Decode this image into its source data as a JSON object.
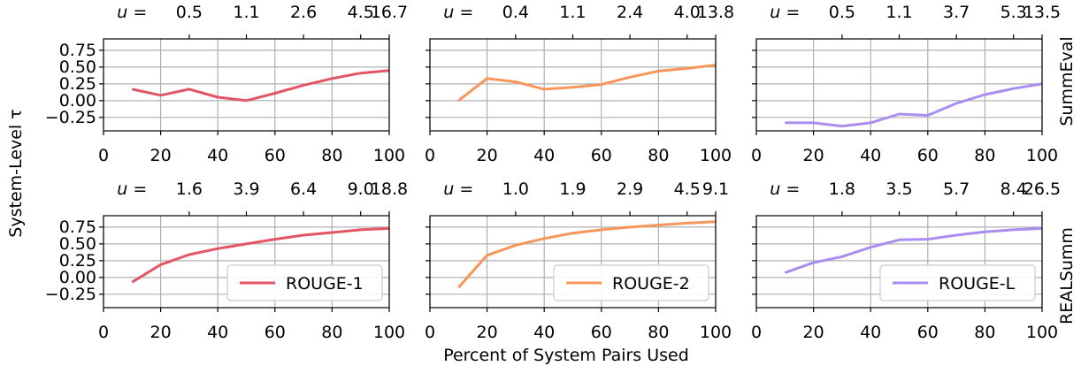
{
  "figure": {
    "ylabel": "System-Level τ",
    "xlabel": "Percent of System Pairs Used",
    "row_labels": [
      "SummEval",
      "REALSumm"
    ],
    "u_prefix": "u",
    "u_eq": " ="
  },
  "chart_data": [
    {
      "type": "line",
      "row": 0,
      "col": 0,
      "metric": "ROUGE-1",
      "color": "#e35464",
      "x": [
        10,
        20,
        30,
        40,
        50,
        60,
        70,
        80,
        90,
        100
      ],
      "y": [
        0.17,
        0.08,
        0.17,
        0.05,
        0.0,
        0.11,
        0.23,
        0.33,
        0.41,
        0.45
      ],
      "u_ticks": [
        "0.5",
        "1.1",
        "2.6",
        "4.5",
        "16.7"
      ],
      "xlim": [
        0,
        100
      ],
      "ylim": [
        -0.45,
        0.92
      ],
      "yticks": [
        "0.75",
        "0.50",
        "0.25",
        "0.00",
        "−0.25"
      ],
      "xticks": [
        "0",
        "20",
        "40",
        "60",
        "80",
        "100"
      ],
      "grid": true
    },
    {
      "type": "line",
      "row": 0,
      "col": 1,
      "metric": "ROUGE-2",
      "color": "#f7965a",
      "x": [
        10,
        20,
        30,
        40,
        50,
        60,
        70,
        80,
        90,
        100
      ],
      "y": [
        0.0,
        0.33,
        0.28,
        0.17,
        0.2,
        0.24,
        0.35,
        0.44,
        0.48,
        0.53
      ],
      "u_ticks": [
        "0.4",
        "1.1",
        "2.4",
        "4.0",
        "13.8"
      ],
      "xlim": [
        0,
        100
      ],
      "ylim": [
        -0.45,
        0.92
      ],
      "xticks": [
        "0",
        "20",
        "40",
        "60",
        "80",
        "100"
      ],
      "grid": true
    },
    {
      "type": "line",
      "row": 0,
      "col": 2,
      "metric": "ROUGE-L",
      "color": "#a98ef0",
      "x": [
        10,
        20,
        30,
        40,
        50,
        60,
        70,
        80,
        90,
        100
      ],
      "y": [
        -0.33,
        -0.33,
        -0.38,
        -0.33,
        -0.2,
        -0.22,
        -0.04,
        0.09,
        0.18,
        0.25
      ],
      "u_ticks": [
        "0.5",
        "1.1",
        "3.7",
        "5.3",
        "13.5"
      ],
      "xlim": [
        0,
        100
      ],
      "ylim": [
        -0.45,
        0.92
      ],
      "xticks": [
        "0",
        "20",
        "40",
        "60",
        "80",
        "100"
      ],
      "grid": true
    },
    {
      "type": "line",
      "row": 1,
      "col": 0,
      "metric": "ROUGE-1",
      "color": "#e35464",
      "x": [
        10,
        20,
        30,
        40,
        50,
        60,
        70,
        80,
        90,
        100
      ],
      "y": [
        -0.07,
        0.19,
        0.34,
        0.43,
        0.5,
        0.57,
        0.63,
        0.67,
        0.71,
        0.73
      ],
      "u_ticks": [
        "1.6",
        "3.9",
        "6.4",
        "9.0",
        "18.8"
      ],
      "xlim": [
        0,
        100
      ],
      "ylim": [
        -0.45,
        0.92
      ],
      "yticks": [
        "0.75",
        "0.50",
        "0.25",
        "0.00",
        "−0.25"
      ],
      "xticks": [
        "0",
        "20",
        "40",
        "60",
        "80",
        "100"
      ],
      "grid": true,
      "legend": "ROUGE-1",
      "legend_position": "lower-right"
    },
    {
      "type": "line",
      "row": 1,
      "col": 1,
      "metric": "ROUGE-2",
      "color": "#f7965a",
      "x": [
        10,
        20,
        30,
        40,
        50,
        60,
        70,
        80,
        90,
        100
      ],
      "y": [
        -0.15,
        0.33,
        0.48,
        0.58,
        0.66,
        0.71,
        0.75,
        0.78,
        0.81,
        0.83
      ],
      "u_ticks": [
        "1.0",
        "1.9",
        "2.9",
        "4.5",
        "9.1"
      ],
      "xlim": [
        0,
        100
      ],
      "ylim": [
        -0.45,
        0.92
      ],
      "xticks": [
        "0",
        "20",
        "40",
        "60",
        "80",
        "100"
      ],
      "grid": true,
      "legend": "ROUGE-2",
      "legend_position": "lower-right"
    },
    {
      "type": "line",
      "row": 1,
      "col": 2,
      "metric": "ROUGE-L",
      "color": "#a98ef0",
      "x": [
        10,
        20,
        30,
        40,
        50,
        60,
        70,
        80,
        90,
        100
      ],
      "y": [
        0.07,
        0.22,
        0.31,
        0.45,
        0.56,
        0.57,
        0.63,
        0.68,
        0.71,
        0.73
      ],
      "u_ticks": [
        "1.8",
        "3.5",
        "5.7",
        "8.4",
        "26.5"
      ],
      "xlim": [
        0,
        100
      ],
      "ylim": [
        -0.45,
        0.92
      ],
      "xticks": [
        "0",
        "20",
        "40",
        "60",
        "80",
        "100"
      ],
      "grid": true,
      "legend": "ROUGE-L",
      "legend_position": "lower-right"
    }
  ]
}
